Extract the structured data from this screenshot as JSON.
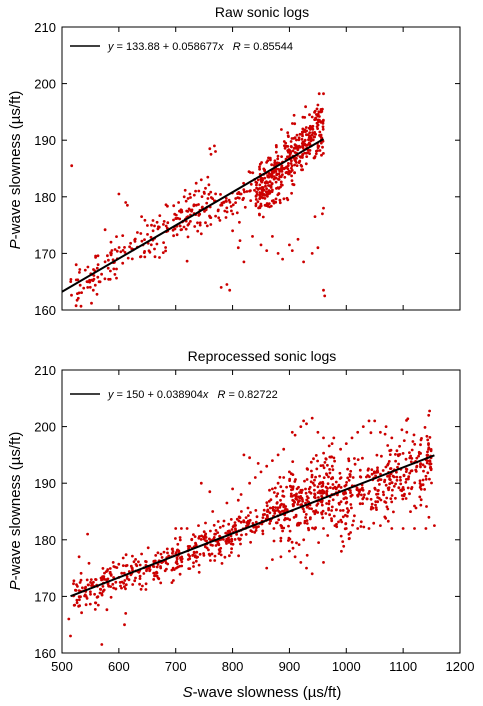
{
  "chart_data": [
    {
      "type": "scatter",
      "title": "Raw sonic logs",
      "xlabel": "S-wave slowness (µs/ft)",
      "ylabel": "P-wave slowness (µs/ft)",
      "xlim": [
        500,
        1200
      ],
      "ylim": [
        160,
        210
      ],
      "x_ticks": [
        "500",
        "600",
        "700",
        "800",
        "900",
        "1000",
        "1100",
        "1200"
      ],
      "y_ticks": [
        "160",
        "170",
        "180",
        "190",
        "200",
        "210"
      ],
      "marker_color": "#cc0000",
      "fit_line_color": "#000000",
      "legend": {
        "placement": "top-left",
        "text_parts": [
          "y",
          " = 133.88 + 0.058677",
          "x",
          "   ",
          "R",
          " = 0.85544"
        ]
      },
      "fit": {
        "intercept": 133.88,
        "slope": 0.058677,
        "R": 0.85544,
        "x_range": [
          500,
          960
        ]
      },
      "clusters": [
        {
          "x_range": [
            515,
            620
          ],
          "center_y": [
            163,
            171
          ],
          "spread": 2.2,
          "count": 80
        },
        {
          "x_range": [
            620,
            760
          ],
          "center_y": [
            171,
            179
          ],
          "spread": 2.0,
          "count": 140
        },
        {
          "x_range": [
            760,
            840
          ],
          "center_y": [
            178,
            182
          ],
          "spread": 2.0,
          "count": 60
        },
        {
          "x_range": [
            840,
            960
          ],
          "center_y": [
            180,
            193
          ],
          "spread": 2.5,
          "count": 420
        }
      ],
      "extra_points": [
        [
          517,
          185.5
        ],
        [
          525,
          168
        ],
        [
          545,
          165
        ],
        [
          555,
          163.5
        ],
        [
          600,
          180.5
        ],
        [
          612,
          179
        ],
        [
          615,
          178.5
        ],
        [
          640,
          176.5
        ],
        [
          735,
          181
        ],
        [
          760,
          188.5
        ],
        [
          762,
          187.5
        ],
        [
          768,
          189
        ],
        [
          770,
          188
        ],
        [
          780,
          164
        ],
        [
          790,
          164.5
        ],
        [
          795,
          163.5
        ],
        [
          800,
          174
        ],
        [
          812,
          175.5
        ],
        [
          810,
          171
        ],
        [
          820,
          168.5
        ],
        [
          835,
          173
        ],
        [
          850,
          171.5
        ],
        [
          860,
          170.5
        ],
        [
          870,
          173
        ],
        [
          880,
          170
        ],
        [
          888,
          169
        ],
        [
          900,
          171.5
        ],
        [
          905,
          170.5
        ],
        [
          915,
          172.5
        ],
        [
          925,
          168.5
        ],
        [
          940,
          170
        ],
        [
          950,
          171
        ],
        [
          960,
          163.5
        ],
        [
          962,
          162.5
        ],
        [
          960,
          178
        ],
        [
          958,
          177
        ],
        [
          945,
          176.5
        ],
        [
          705,
          179
        ],
        [
          715,
          180
        ],
        [
          725,
          180.5
        ],
        [
          745,
          183
        ],
        [
          785,
          179
        ],
        [
          798,
          177.5
        ],
        [
          815,
          180.5
        ],
        [
          830,
          181
        ]
      ]
    },
    {
      "type": "scatter",
      "title": "Reprocessed sonic logs",
      "xlabel": "S-wave slowness (µs/ft)",
      "ylabel": "P-wave slowness (µs/ft)",
      "xlim": [
        500,
        1200
      ],
      "ylim": [
        160,
        210
      ],
      "x_ticks": [
        "500",
        "600",
        "700",
        "800",
        "900",
        "1000",
        "1100",
        "1200"
      ],
      "y_ticks": [
        "160",
        "170",
        "180",
        "190",
        "200",
        "210"
      ],
      "marker_color": "#cc0000",
      "fit_line_color": "#000000",
      "legend": {
        "placement": "top-left",
        "text_parts": [
          "y",
          " = 150 + 0.038904",
          "x",
          "   ",
          "R",
          " = 0.82722"
        ]
      },
      "fit": {
        "intercept": 150,
        "slope": 0.038904,
        "R": 0.82722,
        "x_range": [
          515,
          1155
        ]
      },
      "clusters": [
        {
          "x_range": [
            520,
            650
          ],
          "center_y": [
            170,
            175
          ],
          "spread": 1.6,
          "count": 160
        },
        {
          "x_range": [
            650,
            780
          ],
          "center_y": [
            175,
            180
          ],
          "spread": 1.6,
          "count": 180
        },
        {
          "x_range": [
            780,
            880
          ],
          "center_y": [
            180,
            185
          ],
          "spread": 1.6,
          "count": 150
        },
        {
          "x_range": [
            880,
            980
          ],
          "center_y": [
            184,
            190
          ],
          "spread": 3.5,
          "count": 260
        },
        {
          "x_range": [
            980,
            1150
          ],
          "center_y": [
            186,
            194
          ],
          "spread": 3.5,
          "count": 340
        }
      ],
      "extra_points": [
        [
          512,
          166
        ],
        [
          515,
          163
        ],
        [
          530,
          177
        ],
        [
          545,
          181
        ],
        [
          570,
          161.5
        ],
        [
          610,
          165
        ],
        [
          612,
          167
        ],
        [
          590,
          176
        ],
        [
          640,
          177.5
        ],
        [
          700,
          182
        ],
        [
          710,
          182
        ],
        [
          720,
          182
        ],
        [
          740,
          182.5
        ],
        [
          745,
          190
        ],
        [
          760,
          188.5
        ],
        [
          765,
          185
        ],
        [
          770,
          181
        ],
        [
          790,
          186.5
        ],
        [
          800,
          189
        ],
        [
          810,
          187
        ],
        [
          820,
          195
        ],
        [
          830,
          194.5
        ],
        [
          845,
          193.5
        ],
        [
          860,
          175
        ],
        [
          870,
          176.5
        ],
        [
          885,
          177
        ],
        [
          900,
          178
        ],
        [
          905,
          199
        ],
        [
          910,
          198.5
        ],
        [
          920,
          200
        ],
        [
          925,
          201
        ],
        [
          930,
          200.5
        ],
        [
          940,
          201.5
        ],
        [
          950,
          199
        ],
        [
          960,
          198
        ],
        [
          975,
          197
        ],
        [
          960,
          182
        ],
        [
          980,
          182.5
        ],
        [
          1000,
          182
        ],
        [
          1020,
          182
        ],
        [
          1040,
          182
        ],
        [
          1060,
          182.5
        ],
        [
          1080,
          182
        ],
        [
          1100,
          182
        ],
        [
          1120,
          182
        ],
        [
          1140,
          182
        ],
        [
          1155,
          182.5
        ],
        [
          1145,
          202
        ],
        [
          1050,
          201
        ],
        [
          1070,
          200
        ],
        [
          1060,
          199
        ],
        [
          1080,
          198
        ],
        [
          990,
          196
        ],
        [
          1000,
          197
        ],
        [
          1010,
          198
        ],
        [
          1020,
          199
        ],
        [
          1030,
          200
        ],
        [
          1040,
          201
        ],
        [
          890,
          196
        ],
        [
          880,
          195
        ],
        [
          870,
          194
        ],
        [
          860,
          193
        ],
        [
          850,
          192
        ],
        [
          840,
          191
        ],
        [
          830,
          190
        ],
        [
          815,
          188
        ],
        [
          870,
          189
        ],
        [
          880,
          190
        ],
        [
          890,
          191
        ],
        [
          900,
          192
        ],
        [
          960,
          176
        ],
        [
          940,
          174
        ],
        [
          930,
          175
        ],
        [
          920,
          176
        ],
        [
          910,
          177
        ]
      ]
    }
  ]
}
